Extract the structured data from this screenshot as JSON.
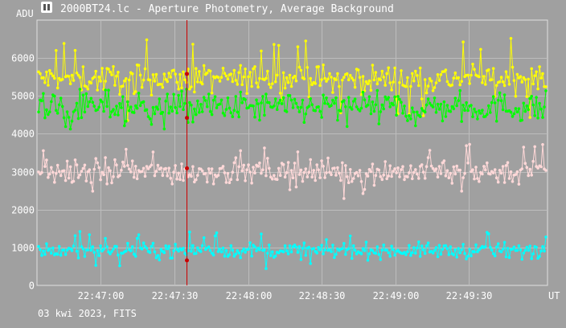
{
  "window": {
    "title": "2000BT24.lc - Aperture Photometry, Average Background",
    "footer": "03 kwi 2023, FITS",
    "icon": "app-icon"
  },
  "chart_data": {
    "type": "line",
    "title": "2000BT24.lc - Aperture Photometry, Average Background",
    "ylabel": "ADU",
    "xlabel": "UT",
    "ylim": [
      0,
      7000
    ],
    "y_ticks": [
      0,
      1000,
      2000,
      3000,
      4000,
      5000,
      6000
    ],
    "x_range": [
      "22:46:34",
      "22:50:02"
    ],
    "x_ticks": [
      "22:47:00",
      "22:47:30",
      "22:48:00",
      "22:48:30",
      "22:49:00",
      "22:49:30"
    ],
    "grid": true,
    "cursor_time": "22:47:35",
    "series": [
      {
        "color": "#ffff00",
        "mean": 5450,
        "spread": 260,
        "peaks": 6500,
        "cursor_value": 5580
      },
      {
        "color": "#00ff00",
        "mean": 4700,
        "spread": 280,
        "peaks": 5250,
        "cursor_value": 4420
      },
      {
        "color": "#ffd8d8",
        "mean": 3000,
        "spread": 230,
        "peaks": 3700,
        "cursor_value": 3090
      },
      {
        "color": "#00ffff",
        "mean": 920,
        "spread": 140,
        "peaks": 1400,
        "cursor_value": 660
      }
    ]
  },
  "colors": {
    "background": "#a0a0a0",
    "plot_background": "#a0a0a0",
    "grid": "#bdbdbd",
    "cursor": "#cc0000",
    "text": "#ffffff"
  }
}
